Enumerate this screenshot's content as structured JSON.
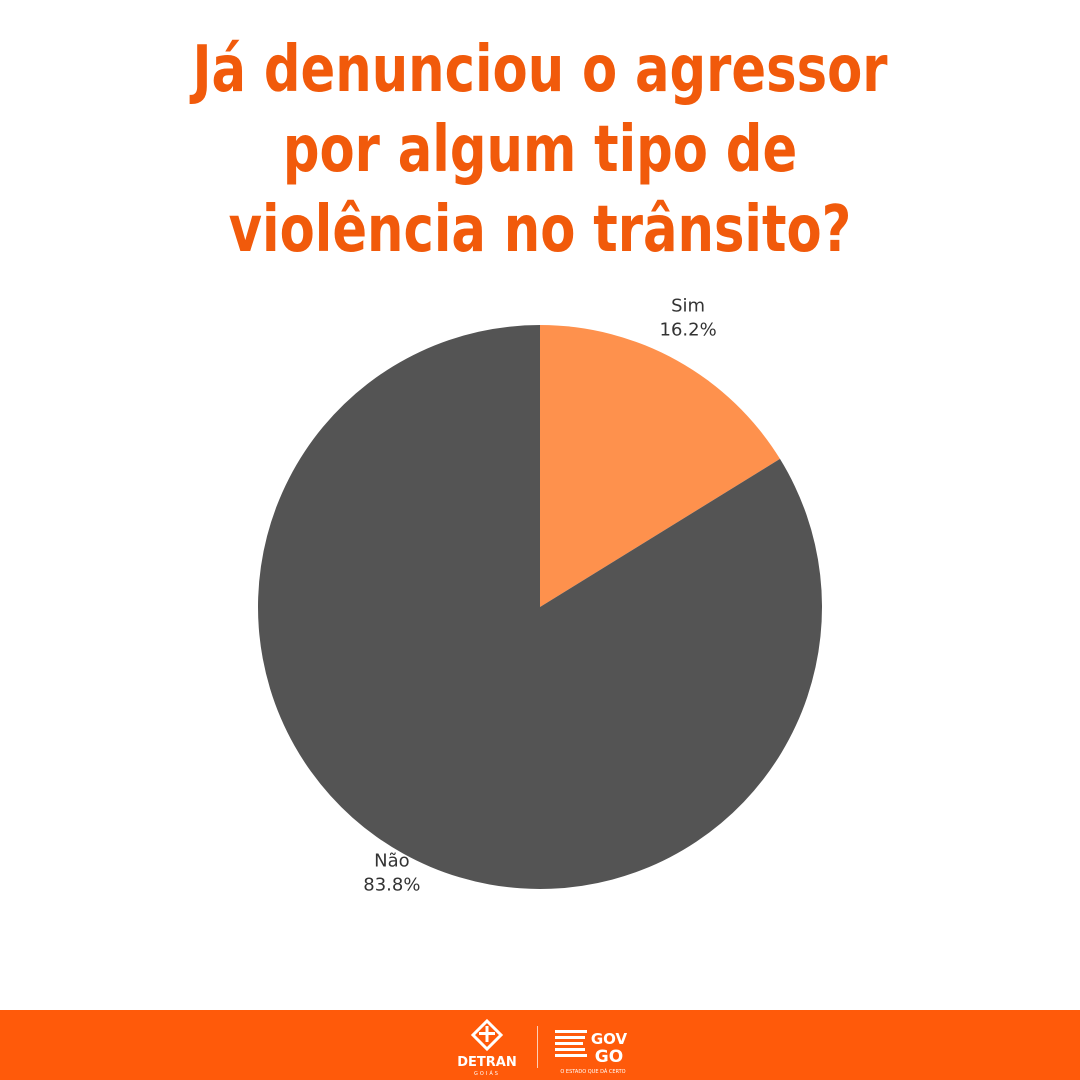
{
  "title": "Já denunciou o agressor por algum tipo de violência no trânsito?",
  "chart_data": {
    "type": "pie",
    "title": "Já denunciou o agressor por algum tipo de violência no trânsito?",
    "slices": [
      {
        "label": "Sim",
        "value": 16.2,
        "value_label": "16.2%",
        "color": "#fe914d"
      },
      {
        "label": "Não",
        "value": 83.8,
        "value_label": "83.8%",
        "color": "#545454"
      }
    ],
    "start_angle": "12 o'clock",
    "direction": "clockwise"
  },
  "footer": {
    "background": "#ff5a0a",
    "logos": [
      {
        "name": "DETRAN Goiás",
        "text": "DETRAN",
        "subtext": "GOIÁS",
        "icon": "detran-emblem-icon"
      },
      {
        "name": "Gov Goiás",
        "text": "GOV GO",
        "subtext": "O ESTADO QUE DÁ CERTO",
        "icon": "goias-flag-icon"
      }
    ]
  },
  "colors": {
    "title": "#f15a0b",
    "accent": "#ff5a0a"
  }
}
